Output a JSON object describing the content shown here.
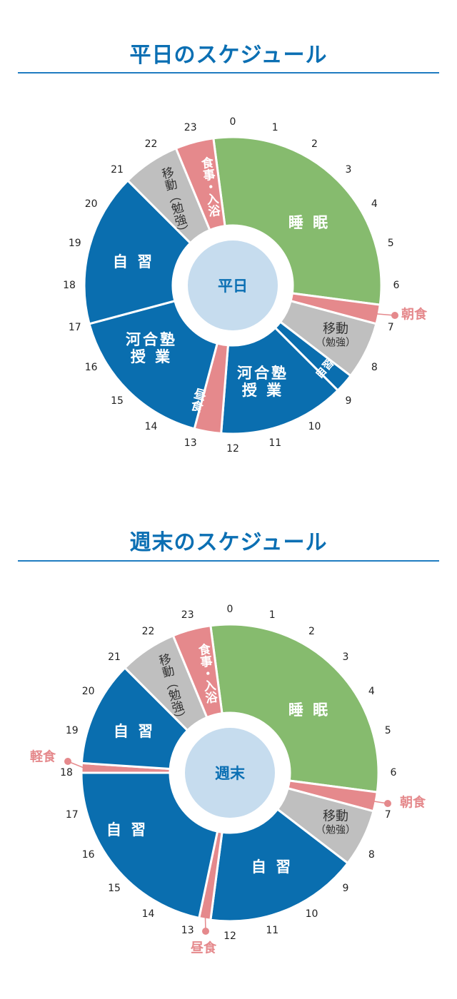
{
  "colors": {
    "title": "#0b6fb3",
    "sleep": "#86bb6e",
    "meal": "#e5898c",
    "move": "#bfbfbf",
    "study": "#0a6eaf",
    "center": "#c6dcee"
  },
  "chart_data": [
    {
      "type": "pie",
      "title": "平日のスケジュール",
      "center_label": "平日",
      "hour_ticks": [
        0,
        1,
        2,
        3,
        4,
        5,
        6,
        7,
        8,
        9,
        10,
        11,
        12,
        13,
        14,
        15,
        16,
        17,
        18,
        19,
        20,
        21,
        22,
        23
      ],
      "segments": [
        {
          "label_lines": [
            "睡 眠"
          ],
          "start": 23.5,
          "end": 6.5,
          "color": "#86bb6e"
        },
        {
          "label_lines": [
            "朝食"
          ],
          "start": 6.5,
          "end": 7,
          "color": "#e5898c",
          "callout": true
        },
        {
          "label_lines": [
            "移動",
            "（勉強）"
          ],
          "start": 7,
          "end": 8.5,
          "color": "#bfbfbf"
        },
        {
          "label_lines": [
            "自習"
          ],
          "start": 8.5,
          "end": 9,
          "color": "#0a6eaf"
        },
        {
          "label_lines": [
            "河合塾",
            "授 業"
          ],
          "start": 9,
          "end": 12.3,
          "color": "#0a6eaf"
        },
        {
          "label_lines": [
            "昼食"
          ],
          "start": 12.3,
          "end": 13,
          "color": "#e5898c"
        },
        {
          "label_lines": [
            "河合塾",
            "授 業"
          ],
          "start": 13,
          "end": 17,
          "color": "#0a6eaf"
        },
        {
          "label_lines": [
            "自 習"
          ],
          "start": 17,
          "end": 21,
          "color": "#0a6eaf"
        },
        {
          "label_lines": [
            "移動（勉強）"
          ],
          "start": 21,
          "end": 22.5,
          "color": "#bfbfbf"
        },
        {
          "label_lines": [
            "食事・入浴"
          ],
          "start": 22.5,
          "end": 23.5,
          "color": "#e5898c"
        }
      ]
    },
    {
      "type": "pie",
      "title": "週末のスケジュール",
      "center_label": "週末",
      "hour_ticks": [
        0,
        1,
        2,
        3,
        4,
        5,
        6,
        7,
        8,
        9,
        10,
        11,
        12,
        13,
        14,
        15,
        16,
        17,
        18,
        19,
        20,
        21,
        22,
        23
      ],
      "segments": [
        {
          "label_lines": [
            "睡 眠"
          ],
          "start": 23.5,
          "end": 6.5,
          "color": "#86bb6e"
        },
        {
          "label_lines": [
            "朝食"
          ],
          "start": 6.5,
          "end": 7,
          "color": "#e5898c",
          "callout": true
        },
        {
          "label_lines": [
            "移動",
            "（勉強）"
          ],
          "start": 7,
          "end": 8.5,
          "color": "#bfbfbf"
        },
        {
          "label_lines": [
            "自 習"
          ],
          "start": 8.5,
          "end": 12.5,
          "color": "#0a6eaf"
        },
        {
          "label_lines": [
            "昼食"
          ],
          "start": 12.5,
          "end": 12.8,
          "color": "#e5898c",
          "callout": true
        },
        {
          "label_lines": [
            "自 習"
          ],
          "start": 12.8,
          "end": 18,
          "color": "#0a6eaf"
        },
        {
          "label_lines": [
            "軽食"
          ],
          "start": 18,
          "end": 18.25,
          "color": "#e5898c",
          "callout": true
        },
        {
          "label_lines": [
            "自 習"
          ],
          "start": 18.25,
          "end": 21,
          "color": "#0a6eaf"
        },
        {
          "label_lines": [
            "移動（勉強）"
          ],
          "start": 21,
          "end": 22.5,
          "color": "#bfbfbf"
        },
        {
          "label_lines": [
            "食事・入浴"
          ],
          "start": 22.5,
          "end": 23.5,
          "color": "#e5898c"
        }
      ]
    }
  ]
}
